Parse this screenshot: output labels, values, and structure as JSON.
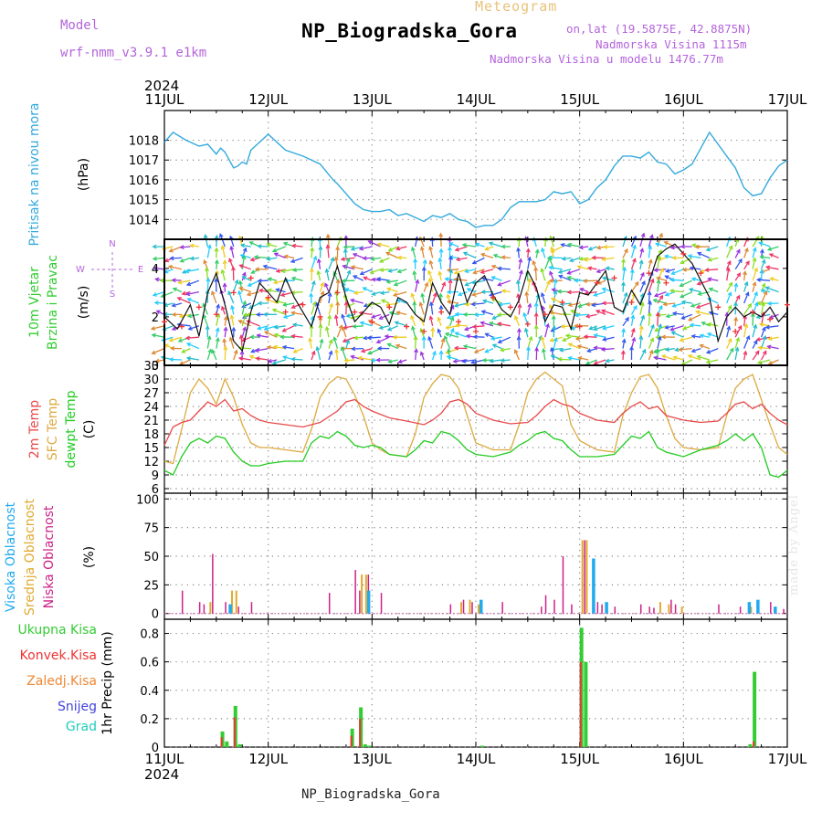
{
  "header": {
    "meteogram_label": "Meteogram",
    "station_title": "NP_Biogradska_Gora",
    "model_label": "Model",
    "model_name": "wrf-nmm_v3.9.1  e1km",
    "coords": "on,lat (19.5875E, 42.8875N)",
    "elevation": "Nadmorska Visina 1115m",
    "model_elevation": "Nadmorska Visina u modelu 1476.77m",
    "bottom_name": "NP_Biogradska_Gora",
    "watermark": "made by Angel"
  },
  "colors": {
    "pressure": "#33aadd",
    "temp2m": "#e84a4a",
    "sfc": "#dcaa40",
    "dewpoint": "#22cc22",
    "high_cloud": "#22aaee",
    "mid_cloud": "#e0aa30",
    "low_cloud": "#cc2288",
    "total_precip": "#33cc33",
    "conv_precip": "#ee3333",
    "frozen": "#ee8833",
    "snow": "#4444dd",
    "hail": "#22ccbb",
    "purple": "#b464dc"
  },
  "chart_data": [
    {
      "type": "line",
      "panel": "pressure",
      "year_top": "2024",
      "year_bottom": "2024",
      "x_labels": [
        "11JUL",
        "12JUL",
        "13JUL",
        "14JUL",
        "15JUL",
        "16JUL",
        "17JUL"
      ],
      "xlabel_left": "Pritisak na nivou mora",
      "ylabel": "(hPa)",
      "xlim_hours": [
        0,
        144
      ],
      "ylim": [
        1013,
        1019.5
      ],
      "yticks": [
        1014,
        1015,
        1016,
        1017,
        1018
      ],
      "series": [
        {
          "x": [
            0,
            2,
            5,
            8,
            10,
            12,
            13,
            14,
            16,
            17,
            18,
            19,
            20,
            24,
            28,
            32,
            36,
            39,
            40,
            42,
            44,
            46,
            48,
            50,
            52,
            54,
            56,
            58,
            60,
            62,
            64,
            66,
            68,
            70,
            72,
            74,
            76,
            78,
            80,
            82,
            84,
            86,
            88,
            90,
            92,
            94,
            96,
            98,
            100,
            102,
            104,
            106,
            108,
            110,
            112,
            114,
            116,
            118,
            120,
            122,
            124,
            126,
            128,
            130,
            132,
            134,
            136,
            138,
            140,
            142,
            144
          ],
          "y": [
            1017.9,
            1018.4,
            1018.0,
            1017.7,
            1017.8,
            1017.3,
            1017.6,
            1017.4,
            1016.6,
            1016.7,
            1016.9,
            1016.8,
            1017.5,
            1018.3,
            1017.5,
            1017.2,
            1016.8,
            1016.0,
            1015.8,
            1015.3,
            1014.8,
            1014.5,
            1014.4,
            1014.4,
            1014.5,
            1014.2,
            1014.3,
            1014.1,
            1013.9,
            1014.2,
            1014.1,
            1014.3,
            1014.0,
            1013.9,
            1013.6,
            1013.7,
            1013.7,
            1014.0,
            1014.6,
            1014.9,
            1014.9,
            1014.9,
            1015.0,
            1015.4,
            1015.3,
            1015.4,
            1014.8,
            1015.0,
            1015.6,
            1016.0,
            1016.7,
            1017.2,
            1017.2,
            1017.1,
            1017.4,
            1016.9,
            1016.8,
            1016.3,
            1016.5,
            1016.8,
            1017.6,
            1018.4,
            1017.8,
            1017.2,
            1016.6,
            1015.6,
            1015.2,
            1015.3,
            1016.1,
            1016.7,
            1017.0
          ]
        }
      ]
    },
    {
      "type": "line",
      "panel": "wind",
      "xlabel_left_1": "10m Vjetar",
      "xlabel_left_2": "Brzina i Pravac",
      "ylabel": "(m/s)",
      "compass_n": "N",
      "compass_e": "E",
      "compass_w": "W",
      "compass_s": "S",
      "ylim": [
        0,
        5.2
      ],
      "yticks": [
        0,
        2,
        4
      ],
      "series": [
        {
          "name": "speed",
          "x": [
            0,
            3,
            6,
            8,
            10,
            12,
            14,
            16,
            18,
            20,
            22,
            24,
            26,
            28,
            30,
            32,
            34,
            36,
            38,
            40,
            42,
            44,
            46,
            48,
            50,
            52,
            54,
            56,
            58,
            60,
            62,
            64,
            66,
            68,
            70,
            72,
            74,
            76,
            78,
            80,
            82,
            84,
            86,
            88,
            90,
            92,
            94,
            96,
            98,
            100,
            102,
            104,
            106,
            108,
            110,
            112,
            114,
            116,
            118,
            120,
            122,
            124,
            126,
            128,
            130,
            132,
            134,
            136,
            138,
            140,
            142,
            144
          ],
          "y": [
            2.0,
            1.5,
            2.5,
            1.2,
            3.0,
            3.8,
            2.5,
            1.0,
            0.6,
            2.2,
            3.4,
            3.0,
            2.6,
            3.6,
            2.8,
            2.2,
            1.6,
            2.8,
            3.0,
            4.1,
            2.8,
            1.8,
            2.2,
            2.6,
            2.4,
            1.7,
            2.8,
            2.6,
            2.1,
            1.8,
            3.4,
            2.6,
            2.1,
            3.8,
            2.6,
            3.4,
            3.7,
            2.9,
            2.3,
            2.0,
            2.7,
            3.9,
            3.2,
            1.8,
            2.5,
            2.4,
            1.5,
            3.0,
            2.9,
            3.4,
            3.9,
            2.4,
            2.2,
            3.1,
            2.5,
            3.4,
            4.5,
            4.8,
            5.0,
            4.6,
            4.2,
            3.5,
            2.8,
            1.0,
            2.0,
            2.4,
            2.0,
            2.2,
            2.0,
            2.4,
            1.8,
            2.2
          ]
        },
        {
          "name": "gust",
          "x": [
            0,
            4,
            8,
            12,
            16,
            20,
            24,
            28,
            32,
            36,
            40,
            44,
            48,
            52,
            56,
            60,
            64,
            68,
            72,
            76,
            80,
            84,
            88,
            92,
            96,
            100,
            104,
            108,
            112,
            116,
            120,
            124,
            128,
            132,
            136,
            140,
            144
          ],
          "y": [
            1.8,
            1.6,
            2.4,
            2.1,
            3.0,
            3.6,
            2.8,
            2.2,
            2.5,
            2.0,
            3.0,
            2.2,
            1.8,
            2.4,
            1.6,
            1.4,
            2.2,
            1.8,
            1.4,
            2.8,
            2.4,
            1.7,
            2.1,
            2.6,
            1.6,
            3.4,
            3.6,
            2.6,
            3.8,
            3.4,
            4.6,
            3.8,
            2.4,
            1.4,
            2.2,
            1.9,
            2.5
          ]
        }
      ]
    },
    {
      "type": "line",
      "panel": "temperature",
      "legend_1": "2m Temp",
      "legend_2": "SFC Temp",
      "legend_3": "dewpt Temp",
      "ylabel": "(C)",
      "ylim": [
        5,
        33
      ],
      "yticks": [
        6,
        9,
        12,
        15,
        18,
        21,
        24,
        27,
        30,
        33
      ],
      "series": [
        {
          "name": "2m Temp",
          "x": [
            0,
            2,
            4,
            6,
            8,
            10,
            12,
            14,
            16,
            18,
            20,
            22,
            24,
            28,
            32,
            36,
            40,
            42,
            44,
            46,
            48,
            52,
            56,
            60,
            62,
            64,
            66,
            68,
            70,
            72,
            76,
            80,
            84,
            86,
            88,
            90,
            92,
            94,
            96,
            100,
            104,
            106,
            108,
            110,
            112,
            114,
            116,
            118,
            120,
            124,
            128,
            130,
            132,
            134,
            136,
            138,
            140,
            142,
            144
          ],
          "y": [
            15.5,
            19.5,
            20.5,
            21.0,
            23.0,
            25.0,
            24.0,
            25.5,
            23.0,
            23.5,
            22.0,
            21.0,
            20.5,
            20.0,
            19.5,
            20.5,
            23.0,
            25.0,
            25.5,
            24.0,
            23.0,
            21.5,
            20.8,
            20.0,
            21.0,
            22.5,
            25.0,
            25.5,
            24.5,
            22.5,
            21.0,
            20.2,
            20.5,
            22.0,
            24.0,
            25.5,
            24.5,
            24.0,
            22.5,
            21.0,
            20.5,
            22.5,
            24.0,
            25.0,
            23.5,
            24.0,
            22.0,
            21.5,
            21.0,
            20.5,
            20.8,
            22.5,
            24.5,
            25.0,
            23.5,
            24.5,
            22.5,
            21.0,
            20.0
          ]
        },
        {
          "name": "SFC Temp",
          "x": [
            0,
            2,
            4,
            6,
            8,
            10,
            12,
            14,
            16,
            18,
            20,
            22,
            24,
            28,
            32,
            34,
            36,
            38,
            40,
            42,
            44,
            46,
            48,
            50,
            52,
            56,
            58,
            60,
            62,
            64,
            66,
            68,
            70,
            72,
            76,
            80,
            82,
            84,
            86,
            88,
            90,
            92,
            94,
            96,
            100,
            104,
            106,
            108,
            110,
            112,
            114,
            116,
            118,
            120,
            124,
            128,
            130,
            132,
            134,
            136,
            138,
            140,
            142,
            144
          ],
          "y": [
            12.0,
            11.5,
            19.0,
            27.0,
            30.0,
            28.0,
            24.5,
            30.0,
            26.0,
            20.0,
            16.0,
            15.0,
            15.0,
            14.5,
            14.0,
            19.0,
            26.0,
            29.0,
            30.5,
            30.0,
            26.5,
            22.0,
            16.0,
            14.5,
            13.5,
            13.0,
            18.0,
            26.0,
            29.0,
            31.0,
            30.5,
            28.0,
            22.0,
            16.0,
            14.5,
            14.5,
            20.0,
            27.0,
            30.0,
            31.5,
            30.0,
            28.5,
            20.0,
            16.5,
            14.5,
            14.0,
            22.0,
            27.0,
            30.5,
            31.0,
            28.0,
            22.0,
            17.0,
            15.0,
            14.5,
            15.0,
            22.0,
            28.0,
            30.0,
            31.0,
            25.5,
            20.0,
            15.0,
            13.5
          ]
        },
        {
          "name": "dewpt Temp",
          "x": [
            0,
            2,
            4,
            6,
            8,
            10,
            12,
            14,
            16,
            18,
            20,
            22,
            24,
            28,
            32,
            34,
            36,
            38,
            40,
            42,
            44,
            46,
            48,
            50,
            52,
            56,
            58,
            60,
            62,
            64,
            66,
            68,
            70,
            72,
            76,
            80,
            82,
            84,
            86,
            88,
            90,
            92,
            94,
            96,
            100,
            104,
            106,
            108,
            110,
            112,
            114,
            116,
            118,
            120,
            124,
            128,
            130,
            132,
            134,
            136,
            138,
            140,
            142,
            144
          ],
          "y": [
            10.0,
            9.0,
            13.0,
            16.0,
            17.0,
            16.0,
            17.5,
            17.0,
            14.0,
            12.0,
            11.0,
            11.0,
            11.5,
            12.0,
            12.0,
            16.0,
            17.5,
            17.0,
            18.5,
            17.5,
            15.5,
            15.0,
            15.5,
            15.0,
            13.5,
            13.0,
            14.5,
            16.5,
            16.0,
            18.5,
            18.0,
            16.5,
            14.5,
            13.5,
            13.0,
            14.0,
            15.5,
            16.5,
            18.0,
            18.5,
            17.0,
            16.5,
            14.5,
            13.0,
            13.0,
            13.5,
            15.5,
            17.5,
            17.0,
            18.5,
            15.0,
            14.0,
            13.5,
            13.0,
            14.5,
            15.5,
            16.5,
            18.0,
            16.5,
            18.0,
            15.0,
            9.0,
            8.5,
            10.0
          ]
        }
      ]
    },
    {
      "type": "bar",
      "panel": "clouds",
      "legend_1": "Visoka Oblacnost",
      "legend_2": "Srednja Oblacnost",
      "legend_3": "Niska Oblacnost",
      "ylabel": "(%)",
      "ylim": [
        -5,
        105
      ],
      "yticks": [
        0,
        25,
        50,
        75,
        100
      ],
      "series": [
        {
          "name": "Niska",
          "x": [
            4,
            8,
            9,
            11,
            14,
            15,
            17,
            20,
            38,
            44,
            45,
            47,
            50,
            66,
            69,
            71,
            73,
            78,
            87,
            88,
            90,
            92,
            94,
            97,
            100,
            101,
            104,
            110,
            112,
            113,
            117,
            118,
            128,
            133,
            135,
            140,
            143
          ],
          "y": [
            20,
            10,
            8,
            52,
            10,
            8,
            6,
            10,
            18,
            38,
            20,
            34,
            18,
            8,
            12,
            10,
            6,
            10,
            6,
            16,
            12,
            50,
            8,
            64,
            10,
            8,
            6,
            8,
            6,
            5,
            12,
            8,
            8,
            6,
            6,
            10,
            4
          ]
        },
        {
          "name": "Srednja",
          "x": [
            10,
            15,
            16,
            45,
            46,
            68,
            70,
            72,
            96,
            97,
            114,
            116,
            119,
            135
          ],
          "y": [
            10,
            20,
            20,
            34,
            34,
            10,
            12,
            8,
            64,
            64,
            10,
            8,
            6,
            6
          ]
        },
        {
          "name": "Visoka",
          "x": [
            14,
            46,
            72,
            98,
            101,
            134,
            136,
            140
          ],
          "y": [
            8,
            20,
            12,
            48,
            10,
            10,
            12,
            6
          ]
        }
      ]
    },
    {
      "type": "bar",
      "panel": "precip",
      "legend_1": "Ukupna Kisa",
      "legend_2": "Konvek.Kisa",
      "legend_3": "Zaledj.Kisa",
      "legend_4": "Snijeg",
      "legend_5": "Grad",
      "ylabel": "1hr Precip (mm)",
      "ylim": [
        0,
        0.9
      ],
      "yticks": [
        0,
        0.2,
        0.4,
        0.6,
        0.8
      ],
      "series": [
        {
          "name": "Ukupna Kisa",
          "x": [
            13,
            14,
            16,
            17,
            43,
            45,
            46,
            47,
            73,
            96,
            97,
            135,
            136
          ],
          "y": [
            0.11,
            0.04,
            0.29,
            0.02,
            0.13,
            0.28,
            0.02,
            0.01,
            0.01,
            0.84,
            0.6,
            0.02,
            0.53
          ]
        },
        {
          "name": "Konvek.Kisa",
          "x": [
            13,
            16,
            43,
            45,
            96,
            136
          ],
          "y": [
            0.07,
            0.21,
            0.08,
            0.2,
            0.6,
            0.04
          ]
        }
      ]
    }
  ]
}
